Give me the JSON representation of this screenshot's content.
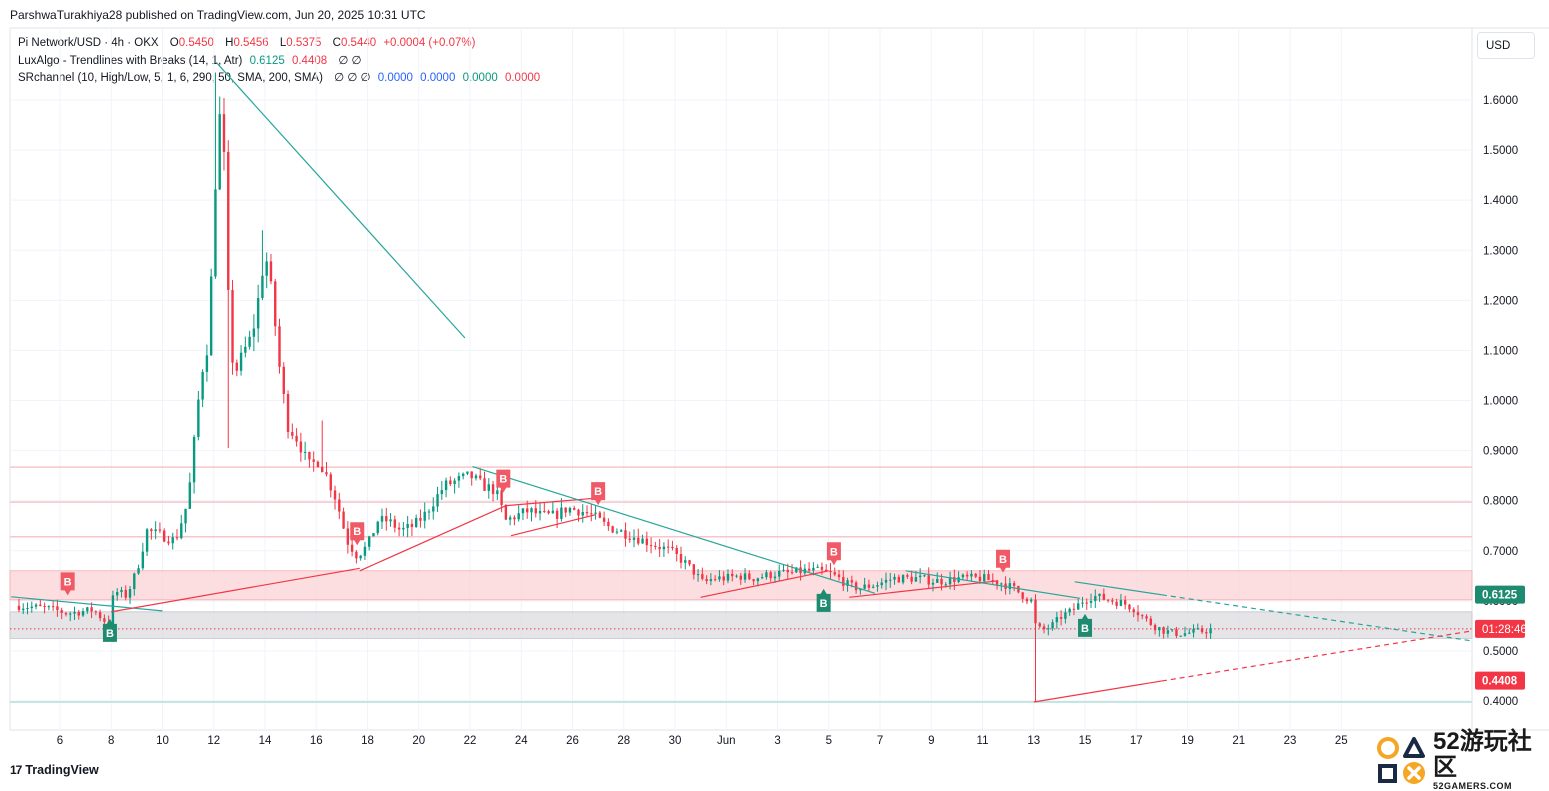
{
  "publisher_line": "ParshwaTurakhiya28 published on TradingView.com, Jun 20, 2025 10:31 UTC",
  "legend": {
    "symbol": "Pi Network/USD · 4h · OKX",
    "o_label": "O",
    "o_value": "0.5450",
    "h_label": "H",
    "h_value": "0.5456",
    "l_label": "L",
    "l_value": "0.5375",
    "c_label": "C",
    "c_value": "0.5440",
    "change": "+0.0004 (+0.07%)",
    "ind1_name": "LuxAlgo - Trendlines with Breaks (14, 1, Atr)",
    "ind1_v1": "0.6125",
    "ind1_v2": "0.4408",
    "ind1_v3": "∅ ∅",
    "ind2_name": "SRchannel (10, High/Low, 5, 1, 6, 290, 50, SMA, 200, SMA)",
    "ind2_v0": "∅ ∅ ∅",
    "ind2_v1": "0.0000",
    "ind2_v2": "0.0000",
    "ind2_v3": "0.0000",
    "ind2_v4": "0.0000"
  },
  "currency_button": "USD",
  "tradingview_brand": "TradingView",
  "watermark": {
    "big": "52游玩社区",
    "sub": "52GAMERS.COM"
  },
  "colors": {
    "up": "#089981",
    "down": "#f23645",
    "trend_down": "#26a69a",
    "trend_up": "#f23645",
    "zone_red": "#fbd3d6",
    "zone_gray": "#e0e0e3",
    "label_green": "#1e8a6f"
  },
  "chart_data": {
    "type": "candlestick",
    "symbol": "Pi Network/USD",
    "timeframe": "4h",
    "exchange": "OKX",
    "ylim": [
      0.37,
      1.72
    ],
    "y_ticks": [
      "1.6000",
      "1.5000",
      "1.4000",
      "1.3000",
      "1.2000",
      "1.1000",
      "1.0000",
      "0.9000",
      "0.8000",
      "0.7000",
      "0.6000",
      "0.5000",
      "0.4000"
    ],
    "x_ticks": [
      {
        "label": "6",
        "t": 6
      },
      {
        "label": "8",
        "t": 8
      },
      {
        "label": "10",
        "t": 10
      },
      {
        "label": "12",
        "t": 12
      },
      {
        "label": "14",
        "t": 14
      },
      {
        "label": "16",
        "t": 16
      },
      {
        "label": "18",
        "t": 18
      },
      {
        "label": "20",
        "t": 20
      },
      {
        "label": "22",
        "t": 22
      },
      {
        "label": "24",
        "t": 24
      },
      {
        "label": "26",
        "t": 26
      },
      {
        "label": "28",
        "t": 28
      },
      {
        "label": "30",
        "t": 30
      },
      {
        "label": "Jun",
        "t": 32
      },
      {
        "label": "3",
        "t": 34
      },
      {
        "label": "5",
        "t": 36
      },
      {
        "label": "7",
        "t": 38
      },
      {
        "label": "9",
        "t": 40
      },
      {
        "label": "11",
        "t": 42
      },
      {
        "label": "13",
        "t": 44
      },
      {
        "label": "15",
        "t": 46
      },
      {
        "label": "17",
        "t": 48
      },
      {
        "label": "19",
        "t": 50
      },
      {
        "label": "21",
        "t": 52
      },
      {
        "label": "23",
        "t": 54
      },
      {
        "label": "25",
        "t": 56
      }
    ],
    "price_path": [
      [
        4.4,
        0.59
      ],
      [
        5.5,
        0.585
      ],
      [
        6.3,
        0.575
      ],
      [
        7.3,
        0.582
      ],
      [
        7.95,
        0.55
      ],
      [
        8.1,
        0.62
      ],
      [
        8.6,
        0.61
      ],
      [
        9.0,
        0.66
      ],
      [
        9.4,
        0.74
      ],
      [
        10.0,
        0.73
      ],
      [
        10.5,
        0.72
      ],
      [
        11.0,
        0.8
      ],
      [
        11.2,
        0.9
      ],
      [
        11.5,
        1.05
      ],
      [
        11.8,
        1.12
      ],
      [
        12.05,
        1.42
      ],
      [
        12.2,
        1.58
      ],
      [
        12.4,
        1.48
      ],
      [
        12.6,
        1.15
      ],
      [
        12.8,
        1.05
      ],
      [
        13.2,
        1.1
      ],
      [
        13.5,
        1.13
      ],
      [
        13.8,
        1.22
      ],
      [
        14.0,
        1.3
      ],
      [
        14.3,
        1.2
      ],
      [
        14.6,
        1.05
      ],
      [
        14.9,
        0.95
      ],
      [
        15.3,
        0.92
      ],
      [
        15.7,
        0.87
      ],
      [
        16.1,
        0.88
      ],
      [
        16.4,
        0.85
      ],
      [
        16.8,
        0.8
      ],
      [
        17.2,
        0.72
      ],
      [
        17.6,
        0.69
      ],
      [
        18.0,
        0.71
      ],
      [
        18.4,
        0.76
      ],
      [
        18.8,
        0.76
      ],
      [
        19.3,
        0.74
      ],
      [
        19.8,
        0.75
      ],
      [
        20.2,
        0.77
      ],
      [
        20.6,
        0.8
      ],
      [
        21.0,
        0.83
      ],
      [
        21.5,
        0.84
      ],
      [
        22.0,
        0.85
      ],
      [
        22.5,
        0.83
      ],
      [
        23.0,
        0.82
      ],
      [
        23.4,
        0.76
      ],
      [
        23.8,
        0.77
      ],
      [
        24.3,
        0.78
      ],
      [
        24.8,
        0.77
      ],
      [
        25.3,
        0.77
      ],
      [
        25.8,
        0.785
      ],
      [
        26.3,
        0.78
      ],
      [
        26.8,
        0.77
      ],
      [
        27.3,
        0.75
      ],
      [
        27.8,
        0.74
      ],
      [
        28.3,
        0.73
      ],
      [
        28.8,
        0.72
      ],
      [
        29.3,
        0.71
      ],
      [
        29.8,
        0.7
      ],
      [
        30.3,
        0.68
      ],
      [
        30.7,
        0.66
      ],
      [
        31.1,
        0.635
      ],
      [
        31.5,
        0.645
      ],
      [
        32.0,
        0.645
      ],
      [
        32.5,
        0.65
      ],
      [
        33.0,
        0.645
      ],
      [
        33.5,
        0.65
      ],
      [
        34.0,
        0.655
      ],
      [
        34.5,
        0.655
      ],
      [
        35.0,
        0.66
      ],
      [
        35.5,
        0.66
      ],
      [
        36.0,
        0.655
      ],
      [
        36.4,
        0.645
      ],
      [
        36.8,
        0.63
      ],
      [
        37.2,
        0.625
      ],
      [
        37.6,
        0.63
      ],
      [
        38.0,
        0.635
      ],
      [
        38.5,
        0.645
      ],
      [
        39.0,
        0.645
      ],
      [
        39.5,
        0.645
      ],
      [
        40.0,
        0.64
      ],
      [
        40.5,
        0.64
      ],
      [
        41.0,
        0.645
      ],
      [
        41.5,
        0.645
      ],
      [
        42.0,
        0.645
      ],
      [
        42.4,
        0.64
      ],
      [
        42.8,
        0.635
      ],
      [
        43.2,
        0.625
      ],
      [
        43.6,
        0.61
      ],
      [
        43.9,
        0.6
      ],
      [
        44.0,
        0.555
      ],
      [
        44.3,
        0.54
      ],
      [
        44.7,
        0.55
      ],
      [
        45.1,
        0.57
      ],
      [
        45.5,
        0.58
      ],
      [
        45.9,
        0.6
      ],
      [
        46.3,
        0.61
      ],
      [
        46.7,
        0.605
      ],
      [
        47.1,
        0.6
      ],
      [
        47.5,
        0.595
      ],
      [
        47.9,
        0.585
      ],
      [
        48.3,
        0.565
      ],
      [
        48.7,
        0.55
      ],
      [
        49.1,
        0.54
      ],
      [
        49.5,
        0.535
      ],
      [
        49.9,
        0.535
      ],
      [
        50.3,
        0.538
      ],
      [
        50.7,
        0.54
      ],
      [
        50.95,
        0.544
      ]
    ],
    "trendlines": [
      {
        "color": "#26a69a",
        "from": [
          12.1,
          1.675
        ],
        "to": [
          21.8,
          1.125
        ],
        "style": "solid"
      },
      {
        "color": "#26a69a",
        "from": [
          4.1,
          0.608
        ],
        "to": [
          10.0,
          0.58
        ],
        "style": "solid"
      },
      {
        "color": "#f23645",
        "from": [
          8.0,
          0.578
        ],
        "to": [
          17.7,
          0.665
        ],
        "style": "solid"
      },
      {
        "color": "#f23645",
        "from": [
          17.7,
          0.66
        ],
        "to": [
          23.4,
          0.79
        ],
        "style": "solid"
      },
      {
        "color": "#f23645",
        "from": [
          23.4,
          0.79
        ],
        "to": [
          26.9,
          0.805
        ],
        "style": "solid"
      },
      {
        "color": "#26a69a",
        "from": [
          22.1,
          0.868
        ],
        "to": [
          37.8,
          0.615
        ],
        "style": "solid"
      },
      {
        "color": "#f23645",
        "from": [
          23.6,
          0.73
        ],
        "to": [
          26.9,
          0.772
        ],
        "style": "solid"
      },
      {
        "color": "#f23645",
        "from": [
          31.0,
          0.607
        ],
        "to": [
          36.0,
          0.66
        ],
        "style": "solid"
      },
      {
        "color": "#f23645",
        "from": [
          36.8,
          0.607
        ],
        "to": [
          42.6,
          0.64
        ],
        "style": "solid"
      },
      {
        "color": "#26a69a",
        "from": [
          39.0,
          0.66
        ],
        "to": [
          45.8,
          0.605
        ],
        "style": "solid"
      },
      {
        "color": "#26a69a",
        "from": [
          45.6,
          0.638
        ],
        "to": [
          49.0,
          0.612
        ],
        "style": "solid"
      },
      {
        "color": "#26a69a",
        "from": [
          49.0,
          0.612
        ],
        "to": [
          61.1,
          0.52
        ],
        "style": "dashed"
      },
      {
        "color": "#f23645",
        "from": [
          44.0,
          0.398
        ],
        "to": [
          49.0,
          0.44
        ],
        "style": "solid"
      },
      {
        "color": "#f23645",
        "from": [
          49.0,
          0.44
        ],
        "to": [
          61.1,
          0.54
        ],
        "style": "dashed"
      }
    ],
    "zones": [
      {
        "type": "resistance",
        "from": 0.602,
        "to": 0.66
      },
      {
        "type": "support",
        "from": 0.525,
        "to": 0.578
      }
    ],
    "levels": [
      {
        "value": 0.867,
        "color": "#f7c6ca"
      },
      {
        "value": 0.797,
        "color": "#f7c6ca"
      },
      {
        "value": 0.728,
        "color": "#f7c6ca"
      },
      {
        "value": 0.398,
        "color": "#b2dfdb"
      }
    ],
    "current_price_line": 0.544,
    "break_markers": [
      {
        "label": "B",
        "kind": "down",
        "t": 6.3,
        "y": 0.615
      },
      {
        "label": "B",
        "kind": "up",
        "t": 7.95,
        "y": 0.56
      },
      {
        "label": "B",
        "kind": "down",
        "t": 17.6,
        "y": 0.715
      },
      {
        "label": "B",
        "kind": "down",
        "t": 23.3,
        "y": 0.82
      },
      {
        "label": "B",
        "kind": "down",
        "t": 27.0,
        "y": 0.795
      },
      {
        "label": "B",
        "kind": "down",
        "t": 36.2,
        "y": 0.675
      },
      {
        "label": "B",
        "kind": "up",
        "t": 35.8,
        "y": 0.62
      },
      {
        "label": "B",
        "kind": "down",
        "t": 42.8,
        "y": 0.66
      },
      {
        "label": "B",
        "kind": "up",
        "t": 46.0,
        "y": 0.57
      }
    ],
    "axis_labels": [
      {
        "text": "0.6125",
        "value": 0.6125,
        "bg": "#1e8a6f",
        "fg": "#ffffff",
        "bold": true
      },
      {
        "text": "01:28:46",
        "value": 0.544,
        "bg": "#f23645",
        "fg": "#ffffff",
        "bold": false
      },
      {
        "text": "0.4408",
        "value": 0.4408,
        "bg": "#f23645",
        "fg": "#ffffff",
        "bold": true
      }
    ]
  }
}
